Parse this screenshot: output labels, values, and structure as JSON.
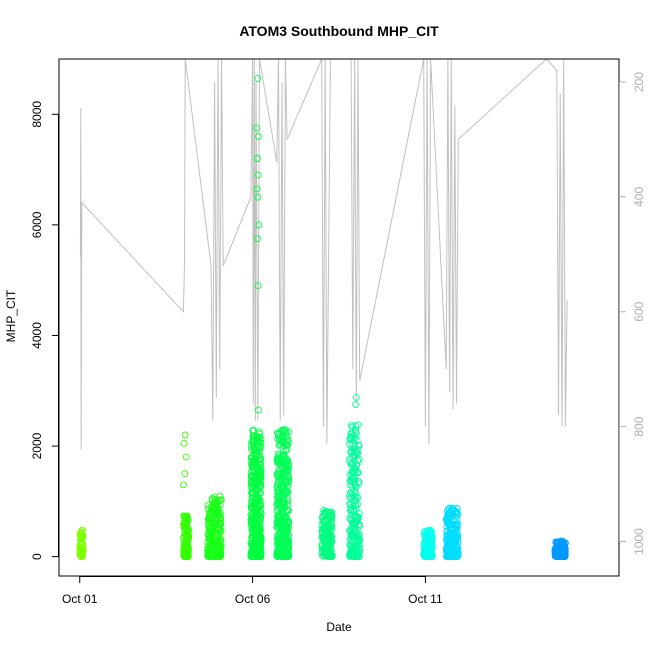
{
  "chart_data": {
    "type": "scatter",
    "title": "ATOM3 Southbound MHP_CIT",
    "xlabel": "Date",
    "ylabel": "MHP_CIT",
    "xlim_days": [
      -0.6,
      15.6
    ],
    "ylim": [
      -350,
      9000
    ],
    "y2lim": [
      1060,
      160
    ],
    "x_ticks": [
      {
        "day": 0,
        "label": "Oct 01"
      },
      {
        "day": 5,
        "label": "Oct 06"
      },
      {
        "day": 10,
        "label": "Oct 11"
      }
    ],
    "y_ticks": [
      0,
      2000,
      4000,
      6000,
      8000
    ],
    "y2_ticks": [
      200,
      400,
      600,
      800,
      1000
    ],
    "grid": false,
    "point_series": {
      "marker": "open-circle",
      "clusters": [
        {
          "day_start": 0.0,
          "day_end": 0.1,
          "y_max": 480,
          "color": "#7fff00",
          "count": 70
        },
        {
          "day_start": 3.0,
          "day_end": 3.15,
          "y_max": 750,
          "color": "#33ff00",
          "count": 110
        },
        {
          "day_start": 3.7,
          "day_end": 4.1,
          "y_max": 1100,
          "color": "#19ff19",
          "count": 260
        },
        {
          "day_start": 4.95,
          "day_end": 5.25,
          "y_max": 2300,
          "color": "#00ff40",
          "count": 420
        },
        {
          "day_start": 5.7,
          "day_end": 6.05,
          "y_max": 2300,
          "color": "#00ff55",
          "count": 380
        },
        {
          "day_start": 7.0,
          "day_end": 7.3,
          "y_max": 850,
          "color": "#00ff80",
          "count": 160
        },
        {
          "day_start": 7.8,
          "day_end": 8.1,
          "y_max": 2400,
          "color": "#00ff9a",
          "count": 220
        },
        {
          "day_start": 9.95,
          "day_end": 10.2,
          "y_max": 480,
          "color": "#00ffee",
          "count": 120
        },
        {
          "day_start": 10.6,
          "day_end": 10.95,
          "y_max": 880,
          "color": "#00ddff",
          "count": 220
        },
        {
          "day_start": 13.75,
          "day_end": 14.05,
          "y_max": 280,
          "color": "#0099ff",
          "count": 160
        }
      ],
      "outliers": [
        {
          "day": 3.05,
          "y": 2200,
          "color": "#33ff00"
        },
        {
          "day": 3.02,
          "y": 2050,
          "color": "#33ff00"
        },
        {
          "day": 3.08,
          "y": 1800,
          "color": "#33ff00"
        },
        {
          "day": 3.04,
          "y": 1500,
          "color": "#33ff00"
        },
        {
          "day": 3.0,
          "y": 1300,
          "color": "#33ff00"
        },
        {
          "day": 5.15,
          "y": 8650,
          "color": "#00ff40"
        },
        {
          "day": 5.12,
          "y": 7750,
          "color": "#00ff40"
        },
        {
          "day": 5.17,
          "y": 7600,
          "color": "#00ff40"
        },
        {
          "day": 5.14,
          "y": 7200,
          "color": "#00ff40"
        },
        {
          "day": 5.16,
          "y": 6900,
          "color": "#00ff40"
        },
        {
          "day": 5.13,
          "y": 6650,
          "color": "#00ff40"
        },
        {
          "day": 5.15,
          "y": 6500,
          "color": "#00ff40"
        },
        {
          "day": 5.18,
          "y": 6000,
          "color": "#00ff40"
        },
        {
          "day": 5.14,
          "y": 5750,
          "color": "#00ff40"
        },
        {
          "day": 5.16,
          "y": 4900,
          "color": "#00ff40"
        },
        {
          "day": 5.17,
          "y": 2650,
          "color": "#00ff40"
        },
        {
          "day": 8.0,
          "y": 2880,
          "color": "#00ff9a"
        },
        {
          "day": 7.98,
          "y": 2750,
          "color": "#00ff9a"
        }
      ]
    },
    "line_series": {
      "axis": "right",
      "color": "#c0c0c0",
      "points": [
        [
          0.02,
          505
        ],
        [
          0.03,
          245
        ],
        [
          0.04,
          840
        ],
        [
          0.06,
          410
        ],
        [
          3.0,
          600
        ],
        [
          3.03,
          515
        ],
        [
          3.05,
          160
        ],
        [
          3.8,
          520
        ],
        [
          3.85,
          790
        ],
        [
          3.9,
          200
        ],
        [
          3.95,
          750
        ],
        [
          4.0,
          160
        ],
        [
          4.05,
          700
        ],
        [
          4.1,
          160
        ],
        [
          4.15,
          520
        ],
        [
          4.95,
          400
        ],
        [
          5.0,
          160
        ],
        [
          5.02,
          760
        ],
        [
          5.05,
          160
        ],
        [
          5.08,
          790
        ],
        [
          5.1,
          200
        ],
        [
          5.15,
          790
        ],
        [
          5.2,
          160
        ],
        [
          5.7,
          340
        ],
        [
          5.75,
          160
        ],
        [
          5.8,
          790
        ],
        [
          5.85,
          200
        ],
        [
          5.9,
          780
        ],
        [
          5.95,
          160
        ],
        [
          6.0,
          300
        ],
        [
          7.0,
          160
        ],
        [
          7.05,
          800
        ],
        [
          7.1,
          160
        ],
        [
          7.15,
          830
        ],
        [
          7.25,
          160
        ],
        [
          7.85,
          160
        ],
        [
          7.9,
          700
        ],
        [
          7.95,
          160
        ],
        [
          8.0,
          760
        ],
        [
          8.05,
          160
        ],
        [
          8.1,
          720
        ],
        [
          9.95,
          160
        ],
        [
          10.0,
          800
        ],
        [
          10.05,
          160
        ],
        [
          10.1,
          830
        ],
        [
          10.15,
          160
        ],
        [
          10.6,
          700
        ],
        [
          10.65,
          160
        ],
        [
          10.7,
          740
        ],
        [
          10.75,
          160
        ],
        [
          10.8,
          770
        ],
        [
          10.85,
          240
        ],
        [
          10.9,
          760
        ],
        [
          10.95,
          300
        ],
        [
          13.5,
          160
        ],
        [
          13.8,
          180
        ],
        [
          13.85,
          780
        ],
        [
          13.9,
          220
        ],
        [
          13.95,
          800
        ],
        [
          14.0,
          160
        ],
        [
          14.05,
          800
        ],
        [
          14.1,
          580
        ]
      ]
    }
  }
}
